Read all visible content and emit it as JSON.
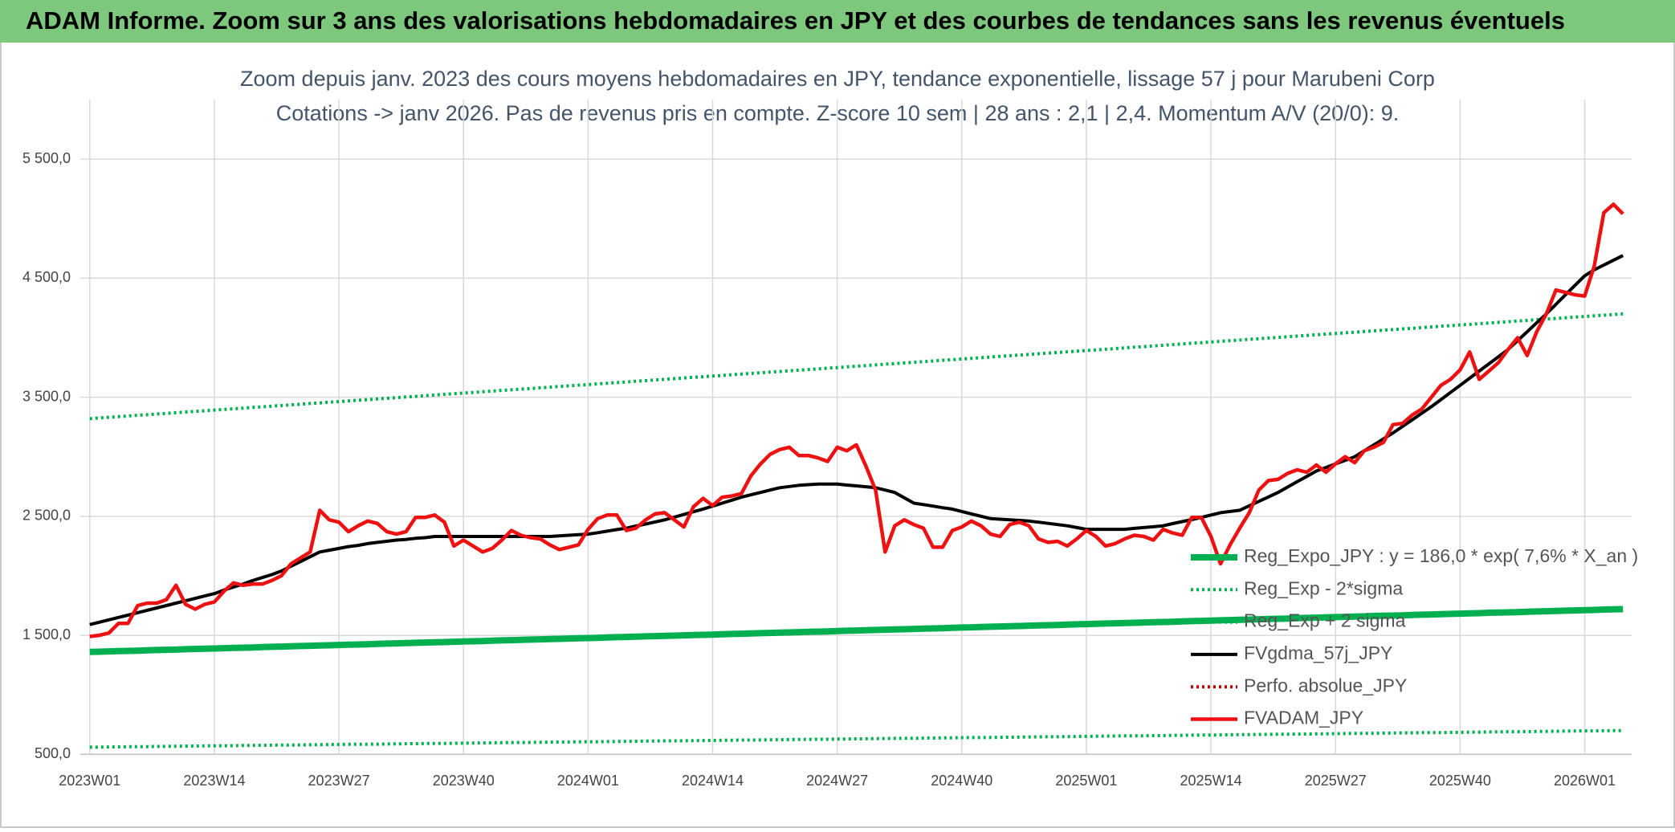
{
  "header": "ADAM Informe. Zoom sur 3 ans des valorisations hebdomadaires en JPY et des courbes de tendances sans les revenus éventuels",
  "chart_data": {
    "type": "line",
    "title": "Zoom depuis janv. 2023 des cours moyens hebdomadaires en JPY, tendance exponentielle, lissage 57 j pour Marubeni Corp",
    "subtitle": "Cotations -> janv 2026. Pas de revenus pris en compte. Z-score 10 sem | 28 ans : 2,1  | 2,4. Momentum A/V (20/0): 9.",
    "categories": [
      "2023W01",
      null,
      null,
      null,
      null,
      null,
      null,
      null,
      null,
      null,
      null,
      null,
      null,
      "2023W14",
      null,
      null,
      null,
      null,
      null,
      null,
      null,
      null,
      null,
      null,
      null,
      null,
      "2023W27",
      null,
      null,
      null,
      null,
      null,
      null,
      null,
      null,
      null,
      null,
      null,
      null,
      "2023W40",
      null,
      null,
      null,
      null,
      null,
      null,
      null,
      null,
      null,
      null,
      null,
      null,
      "2024W01",
      null,
      null,
      null,
      null,
      null,
      null,
      null,
      null,
      null,
      null,
      null,
      null,
      "2024W14",
      null,
      null,
      null,
      null,
      null,
      null,
      null,
      null,
      null,
      null,
      null,
      null,
      "2024W27",
      null,
      null,
      null,
      null,
      null,
      null,
      null,
      null,
      null,
      null,
      null,
      null,
      "2024W40",
      null,
      null,
      null,
      null,
      null,
      null,
      null,
      null,
      null,
      null,
      null,
      null,
      "2025W01",
      null,
      null,
      null,
      null,
      null,
      null,
      null,
      null,
      null,
      null,
      null,
      null,
      "2025W14",
      null,
      null,
      null,
      null,
      null,
      null,
      null,
      null,
      null,
      null,
      null,
      null,
      "2025W27",
      null,
      null,
      null,
      null,
      null,
      null,
      null,
      null,
      null,
      null,
      null,
      null,
      "2025W40",
      null,
      null,
      null,
      null,
      null,
      null,
      null,
      null,
      null,
      null,
      null,
      null,
      "2026W01",
      null,
      null,
      null,
      null
    ],
    "series": [
      {
        "name": "Reg_Expo_JPY : y = 186,0 * exp( 7,6% *  X_an )",
        "color": "#00b050",
        "style": "solid",
        "values": [
          1360,
          1362,
          1365,
          1367,
          1369,
          1371,
          1374,
          1376,
          1378,
          1380,
          1383,
          1385,
          1387,
          1389,
          1392,
          1394,
          1396,
          1398,
          1401,
          1403,
          1405,
          1407,
          1410,
          1412,
          1414,
          1416,
          1419,
          1421,
          1423,
          1425,
          1428,
          1430,
          1432,
          1434,
          1437,
          1439,
          1441,
          1443,
          1446,
          1448,
          1450,
          1452,
          1455,
          1457,
          1459,
          1461,
          1464,
          1466,
          1468,
          1470,
          1473,
          1475,
          1477,
          1479,
          1482,
          1484,
          1486,
          1488,
          1491,
          1493,
          1495,
          1497,
          1500,
          1502,
          1504,
          1506,
          1509,
          1511,
          1513,
          1515,
          1518,
          1520,
          1522,
          1524,
          1527,
          1529,
          1531,
          1533,
          1536,
          1538,
          1540,
          1542,
          1545,
          1547,
          1549,
          1551,
          1554,
          1556,
          1558,
          1560,
          1563,
          1565,
          1567,
          1569,
          1572,
          1574,
          1576,
          1578,
          1581,
          1583,
          1585,
          1587,
          1590,
          1592,
          1594,
          1596,
          1599,
          1601,
          1603,
          1605,
          1608,
          1610,
          1612,
          1614,
          1617,
          1619,
          1621,
          1623,
          1626,
          1628,
          1630,
          1632,
          1635,
          1637,
          1639,
          1641,
          1644,
          1646,
          1648,
          1650,
          1653,
          1655,
          1657,
          1659,
          1662,
          1664,
          1666,
          1668,
          1671,
          1673,
          1675,
          1677,
          1680,
          1682,
          1684,
          1686,
          1689,
          1691,
          1693,
          1695,
          1698,
          1700,
          1702,
          1704,
          1707,
          1709,
          1711,
          1713,
          1716,
          1718,
          1720
        ]
      },
      {
        "name": "Reg_Exp - 2*sigma",
        "color": "#00b050",
        "style": "dotted",
        "values": [
          560,
          561,
          562,
          563,
          564,
          564,
          565,
          566,
          567,
          568,
          569,
          570,
          571,
          571,
          572,
          573,
          574,
          575,
          576,
          577,
          578,
          578,
          579,
          580,
          581,
          582,
          583,
          584,
          585,
          585,
          586,
          587,
          588,
          589,
          590,
          591,
          592,
          592,
          593,
          594,
          595,
          596,
          597,
          598,
          599,
          599,
          600,
          601,
          602,
          603,
          604,
          605,
          606,
          606,
          607,
          608,
          609,
          610,
          611,
          612,
          613,
          613,
          614,
          615,
          616,
          617,
          618,
          619,
          620,
          620,
          621,
          622,
          623,
          624,
          625,
          626,
          627,
          627,
          628,
          629,
          630,
          631,
          632,
          633,
          634,
          634,
          635,
          636,
          637,
          638,
          639,
          640,
          641,
          641,
          642,
          643,
          644,
          645,
          646,
          647,
          648,
          648,
          649,
          650,
          651,
          652,
          653,
          654,
          655,
          655,
          656,
          657,
          658,
          659,
          660,
          661,
          662,
          662,
          663,
          664,
          665,
          666,
          667,
          668,
          669,
          669,
          670,
          671,
          672,
          673,
          674,
          675,
          676,
          676,
          677,
          678,
          679,
          680,
          681,
          682,
          683,
          683,
          684,
          685,
          686,
          687,
          688,
          689,
          690,
          690,
          691,
          692,
          693,
          694,
          695,
          696,
          697,
          697,
          698,
          699,
          700
        ]
      },
      {
        "name": "Reg_Exp + 2 sigma",
        "color": "#00b050",
        "style": "dotted",
        "values": [
          3320,
          3326,
          3331,
          3337,
          3342,
          3348,
          3353,
          3359,
          3364,
          3370,
          3375,
          3381,
          3386,
          3392,
          3397,
          3403,
          3408,
          3414,
          3419,
          3425,
          3430,
          3436,
          3441,
          3447,
          3452,
          3458,
          3463,
          3469,
          3474,
          3480,
          3485,
          3491,
          3496,
          3502,
          3507,
          3513,
          3518,
          3524,
          3529,
          3535,
          3540,
          3546,
          3551,
          3557,
          3562,
          3568,
          3573,
          3579,
          3584,
          3590,
          3595,
          3601,
          3606,
          3612,
          3617,
          3623,
          3628,
          3634,
          3639,
          3645,
          3650,
          3656,
          3661,
          3667,
          3672,
          3678,
          3683,
          3689,
          3694,
          3700,
          3705,
          3711,
          3716,
          3722,
          3727,
          3733,
          3738,
          3744,
          3749,
          3755,
          3760,
          3766,
          3771,
          3777,
          3782,
          3788,
          3793,
          3799,
          3804,
          3810,
          3815,
          3821,
          3826,
          3832,
          3837,
          3843,
          3848,
          3854,
          3859,
          3865,
          3870,
          3876,
          3881,
          3887,
          3892,
          3898,
          3903,
          3909,
          3914,
          3920,
          3925,
          3931,
          3936,
          3942,
          3947,
          3953,
          3958,
          3964,
          3969,
          3975,
          3980,
          3986,
          3991,
          3997,
          4002,
          4008,
          4013,
          4019,
          4024,
          4030,
          4035,
          4041,
          4046,
          4052,
          4057,
          4063,
          4068,
          4074,
          4079,
          4085,
          4090,
          4096,
          4101,
          4107,
          4112,
          4118,
          4123,
          4129,
          4134,
          4140,
          4145,
          4151,
          4156,
          4162,
          4167,
          4173,
          4178,
          4184,
          4189,
          4195,
          4200
        ]
      },
      {
        "name": "FVgdma_57j_JPY",
        "color": "#000000",
        "style": "solid",
        "values": [
          1590,
          1610,
          1630,
          1650,
          1670,
          1690,
          1710,
          1730,
          1750,
          1770,
          1790,
          1810,
          1830,
          1850,
          1880,
          1905,
          1930,
          1960,
          1985,
          2010,
          2040,
          2080,
          2120,
          2160,
          2200,
          2215,
          2230,
          2245,
          2255,
          2270,
          2280,
          2290,
          2300,
          2305,
          2315,
          2320,
          2330,
          2330,
          2330,
          2330,
          2330,
          2330,
          2330,
          2330,
          2330,
          2330,
          2330,
          2330,
          2330,
          2335,
          2340,
          2345,
          2350,
          2362,
          2375,
          2388,
          2400,
          2418,
          2435,
          2452,
          2470,
          2492,
          2515,
          2538,
          2560,
          2585,
          2610,
          2635,
          2660,
          2680,
          2700,
          2720,
          2740,
          2750,
          2760,
          2765,
          2770,
          2770,
          2770,
          2762,
          2755,
          2748,
          2740,
          2720,
          2700,
          2655,
          2610,
          2598,
          2585,
          2572,
          2560,
          2540,
          2520,
          2500,
          2480,
          2475,
          2470,
          2465,
          2460,
          2450,
          2440,
          2430,
          2420,
          2405,
          2390,
          2390,
          2390,
          2390,
          2390,
          2398,
          2405,
          2412,
          2420,
          2438,
          2455,
          2472,
          2490,
          2510,
          2530,
          2540,
          2550,
          2588,
          2625,
          2662,
          2700,
          2745,
          2790,
          2835,
          2880,
          2910,
          2940,
          2970,
          3000,
          3050,
          3100,
          3150,
          3200,
          3255,
          3310,
          3365,
          3420,
          3480,
          3540,
          3600,
          3660,
          3720,
          3780,
          3840,
          3900,
          3975,
          4050,
          4125,
          4200,
          4280,
          4360,
          4440,
          4520,
          4570,
          4610,
          4650,
          4690
        ]
      },
      {
        "name": "Perfo. absolue_JPY",
        "color": "#c00000",
        "style": "dotted",
        "values": [
          null,
          null,
          null,
          null,
          null,
          null,
          null,
          null,
          null,
          null,
          null,
          null,
          null,
          null,
          null,
          null,
          null,
          null,
          null,
          null,
          null,
          null,
          null,
          null,
          null,
          null,
          null,
          null,
          null,
          null,
          null,
          null,
          null,
          null,
          null,
          null,
          null,
          null,
          null,
          null,
          null,
          null,
          null,
          null,
          null,
          null,
          null,
          null,
          null,
          null,
          null,
          null,
          null,
          null,
          null,
          null,
          null,
          null,
          null,
          null,
          null,
          null,
          null,
          null,
          null,
          null,
          null,
          null,
          null,
          null,
          null,
          null,
          null,
          null,
          null,
          null,
          null,
          null,
          null,
          null,
          null,
          null,
          null,
          null,
          null,
          null,
          null,
          null,
          null,
          null,
          null,
          null,
          null,
          null,
          null,
          null,
          null,
          null,
          null,
          null,
          null,
          null,
          null,
          null,
          null,
          null,
          null,
          null,
          null,
          null,
          null,
          null,
          null,
          null,
          null,
          null,
          null,
          null,
          null,
          null,
          null,
          null,
          null,
          null,
          null,
          null,
          null,
          null,
          null,
          null,
          null,
          null,
          null,
          null,
          null,
          null,
          null,
          null,
          null,
          null,
          null,
          null,
          null,
          null,
          null,
          null,
          null,
          null,
          null,
          null,
          null,
          null,
          null,
          null,
          null,
          null,
          null,
          null,
          null,
          null,
          null
        ]
      },
      {
        "name": "FVADAM_JPY",
        "color": "#ee1111",
        "style": "solid",
        "values": [
          1490,
          1500,
          1520,
          1600,
          1600,
          1750,
          1770,
          1770,
          1800,
          1920,
          1760,
          1720,
          1760,
          1780,
          1870,
          1940,
          1920,
          1930,
          1930,
          1960,
          2000,
          2100,
          2150,
          2200,
          2550,
          2470,
          2450,
          2370,
          2420,
          2460,
          2440,
          2370,
          2350,
          2370,
          2490,
          2490,
          2510,
          2450,
          2250,
          2300,
          2250,
          2200,
          2230,
          2300,
          2380,
          2340,
          2320,
          2310,
          2260,
          2220,
          2240,
          2260,
          2390,
          2480,
          2510,
          2510,
          2380,
          2400,
          2470,
          2520,
          2530,
          2470,
          2410,
          2580,
          2650,
          2590,
          2660,
          2670,
          2690,
          2840,
          2940,
          3020,
          3060,
          3080,
          3010,
          3010,
          2990,
          2960,
          3080,
          3050,
          3100,
          2920,
          2720,
          2200,
          2420,
          2470,
          2430,
          2400,
          2240,
          2240,
          2380,
          2410,
          2460,
          2420,
          2350,
          2330,
          2430,
          2450,
          2420,
          2310,
          2280,
          2290,
          2250,
          2310,
          2380,
          2330,
          2250,
          2270,
          2310,
          2340,
          2330,
          2300,
          2390,
          2360,
          2340,
          2490,
          2490,
          2330,
          2100,
          2260,
          2400,
          2530,
          2720,
          2800,
          2810,
          2860,
          2890,
          2870,
          2930,
          2870,
          2940,
          3000,
          2950,
          3050,
          3080,
          3120,
          3270,
          3280,
          3350,
          3400,
          3500,
          3600,
          3650,
          3730,
          3880,
          3650,
          3720,
          3790,
          3900,
          4000,
          3850,
          4050,
          4200,
          4400,
          4380,
          4360,
          4350,
          4600,
          5050,
          5120,
          5040
        ]
      }
    ],
    "ylim": [
      500,
      6000
    ],
    "yticks": [
      {
        "value": 500,
        "label": "500,0"
      },
      {
        "value": 1500,
        "label": "1 500,0"
      },
      {
        "value": 2500,
        "label": "2 500,0"
      },
      {
        "value": 3500,
        "label": "3 500,0"
      },
      {
        "value": 4500,
        "label": "4 500,0"
      },
      {
        "value": 5500,
        "label": "5 500,0"
      }
    ],
    "grid": true,
    "legend": "right"
  }
}
